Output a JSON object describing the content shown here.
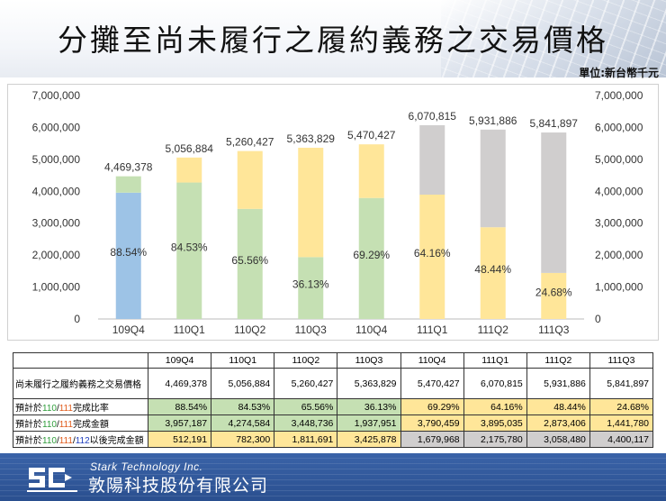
{
  "title": "分攤至尚未履行之履約義務之交易價格",
  "unit": "單位:新台幣千元",
  "colors": {
    "blue": "#9dc3e6",
    "green": "#c5e0b3",
    "yellow": "#ffe699",
    "gray": "#d0cece",
    "r110": "#2e9c3a",
    "r111": "#e05a1a",
    "r112": "#1f3fbf"
  },
  "chart_data": {
    "type": "bar",
    "stacked": true,
    "categories": [
      "109Q4",
      "110Q1",
      "110Q2",
      "110Q3",
      "110Q4",
      "111Q1",
      "111Q2",
      "111Q3"
    ],
    "totals": [
      4469378,
      5056884,
      5260427,
      5363829,
      5470427,
      6070815,
      5931886,
      5841897
    ],
    "total_labels": [
      "4,469,378",
      "5,056,884",
      "5,260,427",
      "5,363,829",
      "5,470,427",
      "6,070,815",
      "5,931,886",
      "5,841,897"
    ],
    "series": [
      {
        "name": "預計完成金額",
        "values": [
          3957187,
          4274584,
          3448736,
          1937951,
          3790459,
          3895035,
          2873406,
          1441780
        ],
        "colors": [
          "blue",
          "green",
          "green",
          "green",
          "green",
          "yellow",
          "yellow",
          "yellow"
        ]
      },
      {
        "name": "以後完成金額",
        "values": [
          512191,
          782300,
          1811691,
          3425878,
          1679968,
          2175780,
          3058480,
          4400117
        ],
        "colors": [
          "green",
          "yellow",
          "yellow",
          "yellow",
          "yellow",
          "gray",
          "gray",
          "gray"
        ]
      }
    ],
    "rate_labels": [
      "88.54%",
      "84.53%",
      "65.56%",
      "36.13%",
      "69.29%",
      "64.16%",
      "48.44%",
      "24.68%"
    ],
    "ylim": [
      0,
      7000000
    ],
    "yticks": [
      0,
      1000000,
      2000000,
      3000000,
      4000000,
      5000000,
      6000000,
      7000000
    ],
    "ytick_labels": [
      "0",
      "1,000,000",
      "2,000,000",
      "3,000,000",
      "4,000,000",
      "5,000,000",
      "6,000,000",
      "7,000,000"
    ],
    "grid": false,
    "dual_axis_labels": true
  },
  "table": {
    "headers": [
      "109Q4",
      "110Q1",
      "110Q2",
      "110Q3",
      "110Q4",
      "111Q1",
      "111Q2",
      "111Q3"
    ],
    "row_backlog": {
      "label": "尚未履行之履約義務之交易價格",
      "values": [
        "4,469,378",
        "5,056,884",
        "5,260,427",
        "5,363,829",
        "5,470,427",
        "6,070,815",
        "5,931,886",
        "5,841,897"
      ]
    },
    "row_rate": {
      "label_prefix": "預計於",
      "label_a": "110",
      "label_sep": "/",
      "label_b": "111",
      "label_suffix": "完成比率",
      "values": [
        "88.54%",
        "84.53%",
        "65.56%",
        "36.13%",
        "69.29%",
        "64.16%",
        "48.44%",
        "24.68%"
      ],
      "bg": [
        "green",
        "green",
        "green",
        "green",
        "yellow",
        "yellow",
        "yellow",
        "yellow"
      ]
    },
    "row_amount": {
      "label_prefix": "預計於",
      "label_a": "110",
      "label_sep": "/",
      "label_b": "111",
      "label_suffix": "完成金額",
      "values": [
        "3,957,187",
        "4,274,584",
        "3,448,736",
        "1,937,951",
        "3,790,459",
        "3,895,035",
        "2,873,406",
        "1,441,780"
      ],
      "bg": [
        "green",
        "green",
        "green",
        "green",
        "yellow",
        "yellow",
        "yellow",
        "yellow"
      ]
    },
    "row_later": {
      "label_prefix": "預計於",
      "label_a": "110",
      "label_sep": "/",
      "label_b": "111",
      "label_sep2": "/",
      "label_c": "112",
      "label_suffix": "以後完成金額",
      "values": [
        "512,191",
        "782,300",
        "1,811,691",
        "3,425,878",
        "1,679,968",
        "2,175,780",
        "3,058,480",
        "4,400,117"
      ],
      "bg": [
        "yellow",
        "yellow",
        "yellow",
        "yellow",
        "gray",
        "gray",
        "gray",
        "gray"
      ]
    }
  },
  "footer": {
    "company_en": "Stark Technology Inc.",
    "company_zh": "敦陽科技股份有限公司"
  }
}
